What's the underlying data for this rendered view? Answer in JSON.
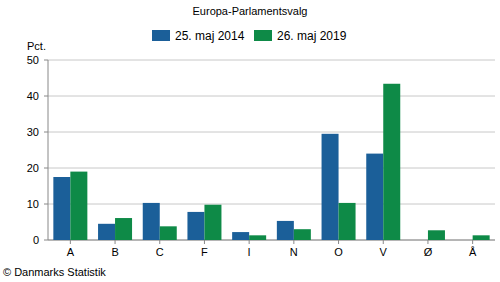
{
  "chart_data": {
    "type": "bar",
    "title": "Europa-Parlamentsvalg",
    "y_label": "Pct.",
    "source": "© Danmarks Statistik",
    "categories": [
      "A",
      "B",
      "C",
      "F",
      "I",
      "N",
      "O",
      "V",
      "Ø",
      "Å"
    ],
    "series": [
      {
        "name": "25. maj 2014",
        "color": "#1b5f99",
        "values": [
          17.5,
          4.5,
          10.3,
          7.8,
          2.2,
          5.3,
          29.5,
          24.0,
          null,
          null
        ]
      },
      {
        "name": "26. maj 2019",
        "color": "#0e8a47",
        "values": [
          19.0,
          6.1,
          3.8,
          9.8,
          1.3,
          3.0,
          10.3,
          43.4,
          2.7,
          1.3
        ]
      }
    ],
    "ylim": [
      0,
      50
    ],
    "yticks": [
      0,
      10,
      20,
      30,
      40,
      50
    ],
    "grid": true,
    "legend": "top"
  }
}
